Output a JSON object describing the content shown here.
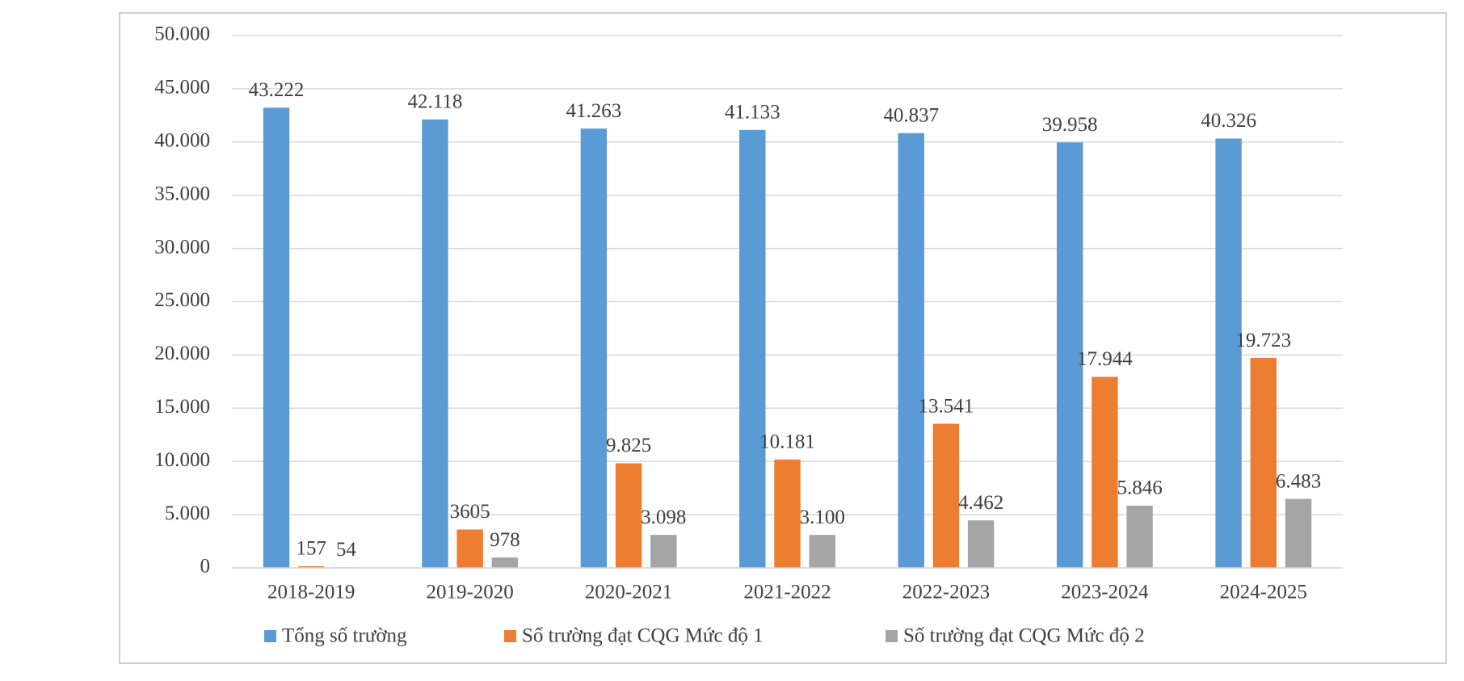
{
  "chart_data": {
    "type": "bar",
    "categories": [
      "2018-2019",
      "2019-2020",
      "2020-2021",
      "2021-2022",
      "2022-2023",
      "2023-2024",
      "2024-2025"
    ],
    "series": [
      {
        "name": "Tổng số trường",
        "color": "#5b9bd5",
        "values": [
          43222,
          42118,
          41263,
          41133,
          40837,
          39958,
          40326
        ],
        "value_labels": [
          "43.222",
          "42.118",
          "41.263",
          "41.133",
          "40.837",
          "39.958",
          "40.326"
        ]
      },
      {
        "name": "Số trường đạt CQG Mức độ 1",
        "color": "#ed7d31",
        "values": [
          157,
          3605,
          9825,
          10181,
          13541,
          17944,
          19723
        ],
        "value_labels": [
          "157",
          "3605",
          "9.825",
          "10.181",
          "13.541",
          "17.944",
          "19.723"
        ]
      },
      {
        "name": "Số trường đạt CQG Mức độ 2",
        "color": "#a5a5a5",
        "values": [
          54,
          978,
          3098,
          3100,
          4462,
          5846,
          6483
        ],
        "value_labels": [
          "54",
          "978",
          "3.098",
          "3.100",
          "4.462",
          "5.846",
          "6.483"
        ]
      }
    ],
    "ylim": [
      0,
      50000
    ],
    "yticks": [
      0,
      {
        "value": 5000,
        "label": "5.000"
      },
      {
        "value": 10000,
        "label": "10.000"
      },
      {
        "value": 15000,
        "label": "15.000"
      },
      {
        "value": 20000,
        "label": "20.000"
      },
      {
        "value": 25000,
        "label": "25.000"
      },
      {
        "value": 30000,
        "label": "30.000"
      },
      {
        "value": 35000,
        "label": "35.000"
      },
      {
        "value": 40000,
        "label": "40.000"
      },
      {
        "value": 45000,
        "label": "45.000"
      },
      {
        "value": 50000,
        "label": "50.000"
      }
    ],
    "grid": true,
    "legend": "bottom"
  }
}
